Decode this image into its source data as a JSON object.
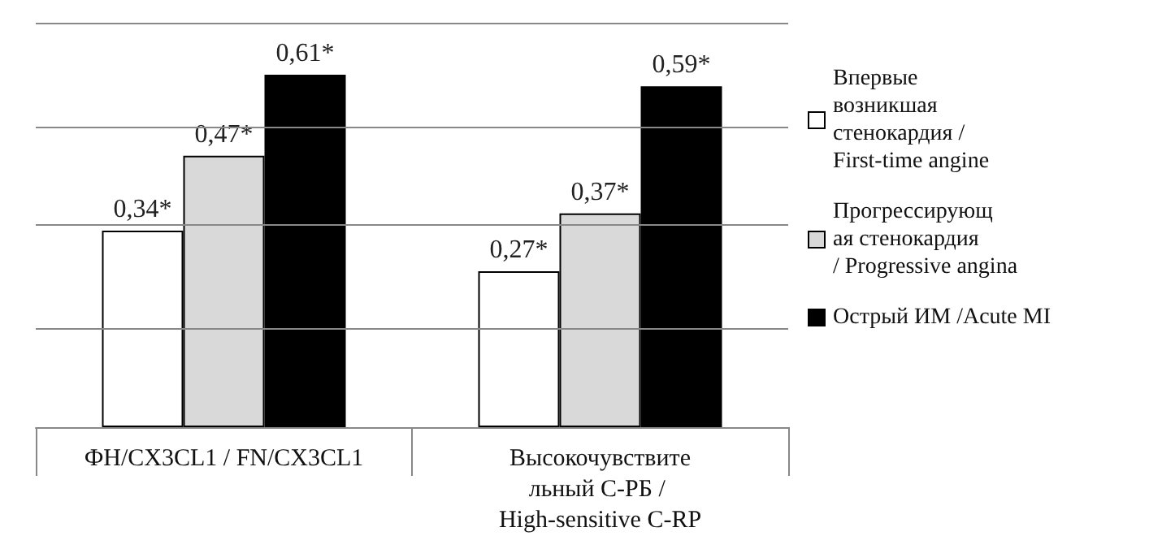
{
  "chart_data": {
    "type": "bar",
    "categories": [
      "ФН/CX3CL1 / FN/CX3CL1",
      "Высокочувствительный С-РБ / High-sensitive C-RP"
    ],
    "series": [
      {
        "name": "Впервые возникшая стенокардия / First-time angine",
        "color": "#ffffff",
        "values": [
          0.34,
          0.27
        ],
        "value_labels": [
          "0,34*",
          "0,27*"
        ]
      },
      {
        "name": "Прогрессирующая стенокардия / Progressive angina",
        "color": "#d9d9d9",
        "values": [
          0.47,
          0.37
        ],
        "value_labels": [
          "0,47*",
          "0,37*"
        ]
      },
      {
        "name": "Острый ИМ /Acute MI",
        "color": "#000000",
        "values": [
          0.61,
          0.59
        ],
        "value_labels": [
          "0,61*",
          "0,59*"
        ]
      }
    ],
    "ylim": [
      0,
      0.7
    ],
    "tick_labels": "x",
    "grid": "y",
    "legend": "right"
  }
}
